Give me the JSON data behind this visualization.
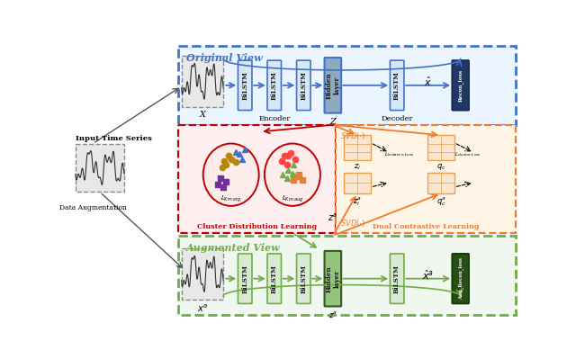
{
  "orig_view_label": "Original View",
  "aug_view_label": "Augmented View",
  "cluster_label": "Cluster Distribution Learning",
  "dual_label": "Dual Contrastive Learning",
  "encoder_label": "Encoder",
  "decoder_label": "Decoder",
  "input_label": "Input Time Series",
  "data_aug_label": "Data Augmentation",
  "svd_label": "SVD(·)",
  "orig_box_color": "#4472C4",
  "aug_box_color": "#70AD47",
  "cluster_box_color": "#C00000",
  "dual_box_color": "#ED7D31",
  "bilstm_orig_face": "#D6E8F7",
  "bilstm_orig_edge": "#4472C4",
  "bilstm_aug_face": "#D9EAD3",
  "bilstm_aug_edge": "#70AD47",
  "hidden_orig_face": "#8EA9C1",
  "hidden_orig_edge": "#4472C4",
  "hidden_aug_face": "#93C47D",
  "hidden_aug_edge": "#375623",
  "recon_orig_face": "#1F3864",
  "recon_aug_face": "#274E13",
  "grid_face": "#FCE5CD",
  "grid_edge": "#E6A050",
  "bg_color": "#FFFFFF",
  "arrow_orig": "#4472C4",
  "arrow_aug": "#70AD47",
  "arrow_red": "#C00000",
  "arrow_orange": "#ED7D31"
}
